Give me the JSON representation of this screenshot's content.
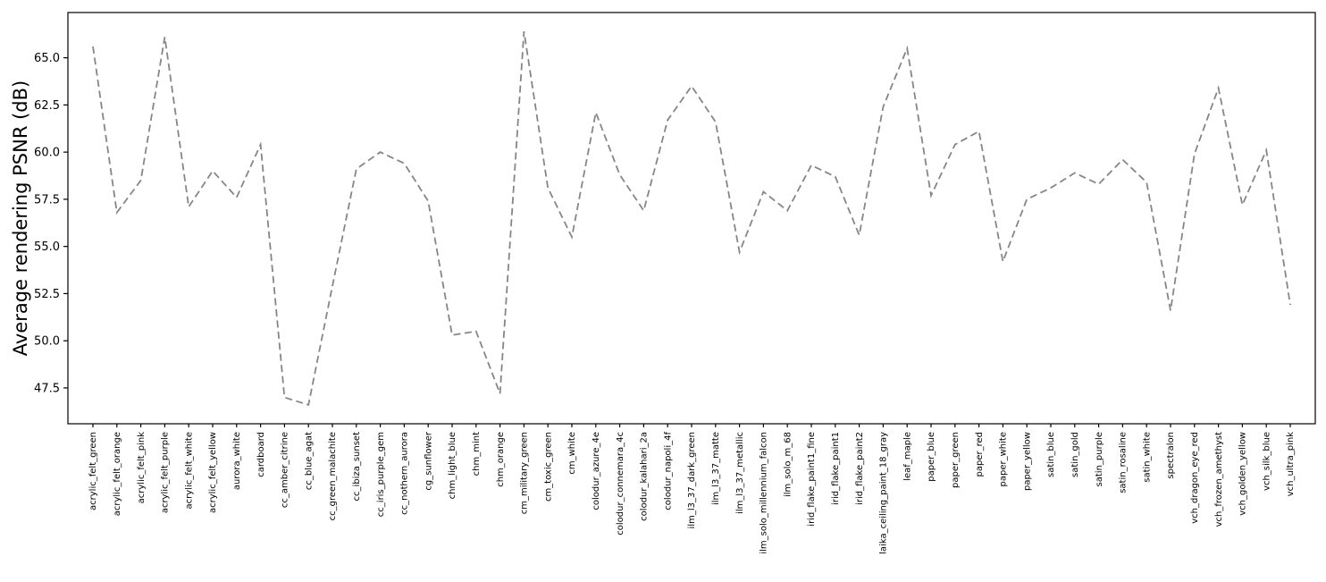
{
  "chart_data": {
    "type": "line",
    "title": "",
    "xlabel": "",
    "ylabel": "Average rendering PSNR (dB)",
    "legend": "none",
    "grid": false,
    "background": "#ffffff",
    "axis_color": "#000000",
    "line": {
      "color": "#868686",
      "style": "dashed",
      "width": 1.8,
      "dash": [
        8,
        4.5
      ]
    },
    "ylim": [
      45.6,
      67.4
    ],
    "yticks": [
      47.5,
      50.0,
      52.5,
      55.0,
      57.5,
      60.0,
      62.5,
      65.0
    ],
    "ytick_labels": [
      "47.5",
      "50.0",
      "52.5",
      "55.0",
      "57.5",
      "60.0",
      "62.5",
      "65.0"
    ],
    "categories": [
      "acrylic_felt_green",
      "acrylic_felt_orange",
      "acrylic_felt_pink",
      "acrylic_felt_purple",
      "acrylic_felt_white",
      "acrylic_felt_yellow",
      "aurora_white",
      "cardboard",
      "cc_amber_citrine",
      "cc_blue_agat",
      "cc_green_malachite",
      "cc_ibiza_sunset",
      "cc_iris_purple_gem",
      "cc_nothern_aurora",
      "cg_sunflower",
      "chm_light_blue",
      "chm_mint",
      "chm_orange",
      "cm_military_green",
      "cm_toxic_green",
      "cm_white",
      "colodur_azure_4e",
      "colodur_connemara_4c",
      "colodur_kalahari_2a",
      "colodur_napoli_4f",
      "ilm_l3_37_dark_green",
      "ilm_l3_37_matte",
      "ilm_l3_37_metallic",
      "ilm_solo_millennium_falcon",
      "ilm_solo_m_68",
      "irid_flake_paint1_fine",
      "irid_flake_paint1",
      "irid_flake_paint2",
      "laika_ceiling_paint_18_gray",
      "leaf_maple",
      "paper_blue",
      "paper_green",
      "paper_red",
      "paper_white",
      "paper_yellow",
      "satin_blue",
      "satin_gold",
      "satin_purple",
      "satin_rosaline",
      "satin_white",
      "spectralon",
      "vch_dragon_eye_red",
      "vch_frozen_amethyst",
      "vch_golden_yellow",
      "vch_silk_blue",
      "vch_ultra_pink"
    ],
    "values": [
      65.6,
      56.8,
      58.5,
      66.1,
      57.1,
      59.0,
      57.6,
      60.4,
      47.0,
      46.6,
      52.9,
      59.1,
      60.0,
      59.4,
      57.4,
      50.3,
      50.5,
      47.2,
      66.4,
      58.1,
      55.5,
      62.1,
      58.8,
      56.9,
      61.7,
      63.5,
      61.6,
      54.7,
      57.9,
      56.9,
      59.3,
      58.7,
      55.6,
      62.4,
      65.5,
      57.7,
      60.4,
      61.1,
      54.2,
      57.5,
      58.1,
      58.9,
      58.3,
      59.6,
      58.4,
      51.6,
      59.9,
      63.4,
      57.2,
      60.1,
      51.9
    ]
  }
}
